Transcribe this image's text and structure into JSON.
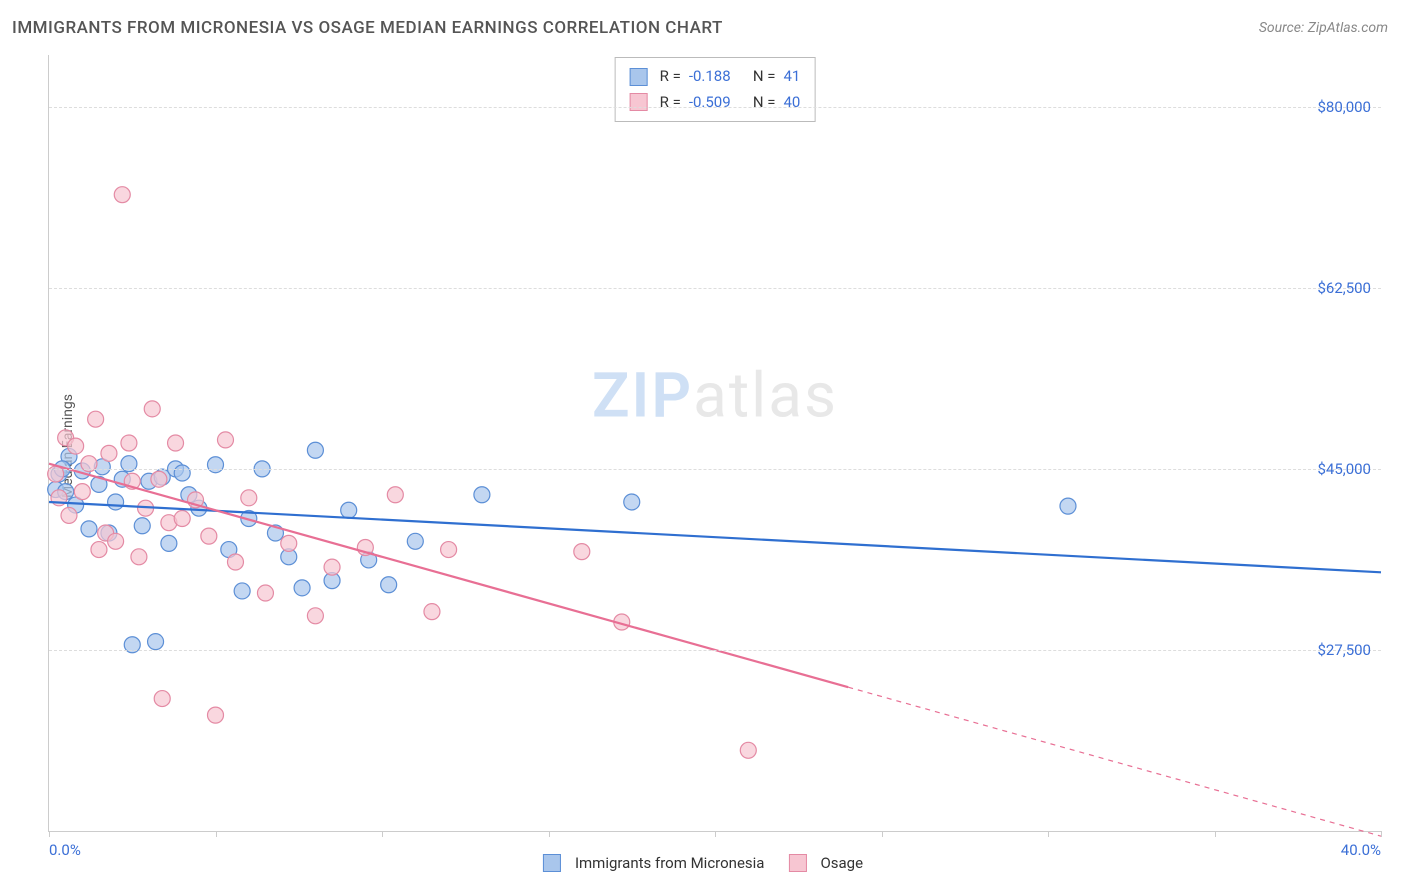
{
  "title": "IMMIGRANTS FROM MICRONESIA VS OSAGE MEDIAN EARNINGS CORRELATION CHART",
  "source": "Source: ZipAtlas.com",
  "y_axis_title": "Median Earnings",
  "watermark": {
    "zip": "ZIP",
    "atlas": "atlas"
  },
  "chart": {
    "type": "scatter",
    "xlim": [
      0,
      40
    ],
    "ylim": [
      10000,
      85000
    ],
    "x_tick_label_left": "0.0%",
    "x_tick_label_right": "40.0%",
    "x_ticks_pct": [
      0,
      5,
      10,
      15,
      20,
      25,
      30,
      35,
      40
    ],
    "y_ticks": [
      27500,
      45000,
      62500,
      80000
    ],
    "y_tick_labels": [
      "$27,500",
      "$45,000",
      "$62,500",
      "$80,000"
    ],
    "background_color": "#ffffff",
    "grid_color": "#dddddd",
    "axis_color": "#cccccc",
    "tick_label_color": "#3b6fd6",
    "tick_label_fontsize": 15,
    "series": [
      {
        "id": "micronesia",
        "label": "Immigrants from Micronesia",
        "fill": "#a9c6ec",
        "stroke": "#5c8fd6",
        "marker_radius": 8,
        "line_color": "#2f6fd0",
        "line_width": 2.2,
        "R": "-0.188",
        "N": "41",
        "trend": {
          "x1": 0,
          "y1": 41800,
          "x2": 40,
          "y2": 35000,
          "solid_until_x": 40
        },
        "points": [
          [
            0.2,
            43000
          ],
          [
            0.3,
            44500
          ],
          [
            0.5,
            42800
          ],
          [
            0.6,
            46200
          ],
          [
            0.8,
            41500
          ],
          [
            1.0,
            44800
          ],
          [
            1.2,
            39200
          ],
          [
            1.5,
            43500
          ],
          [
            1.6,
            45200
          ],
          [
            1.8,
            38800
          ],
          [
            2.0,
            41800
          ],
          [
            2.2,
            44000
          ],
          [
            2.4,
            45500
          ],
          [
            2.5,
            28000
          ],
          [
            2.8,
            39500
          ],
          [
            3.0,
            43800
          ],
          [
            3.2,
            28300
          ],
          [
            3.4,
            44200
          ],
          [
            3.6,
            37800
          ],
          [
            3.8,
            45000
          ],
          [
            4.0,
            44600
          ],
          [
            4.2,
            42500
          ],
          [
            4.5,
            41200
          ],
          [
            5.0,
            45400
          ],
          [
            5.4,
            37200
          ],
          [
            5.8,
            33200
          ],
          [
            6.0,
            40200
          ],
          [
            6.4,
            45000
          ],
          [
            6.8,
            38800
          ],
          [
            7.2,
            36500
          ],
          [
            7.6,
            33500
          ],
          [
            8.0,
            46800
          ],
          [
            8.5,
            34200
          ],
          [
            9.0,
            41000
          ],
          [
            9.6,
            36200
          ],
          [
            10.2,
            33800
          ],
          [
            11.0,
            38000
          ],
          [
            13.0,
            42500
          ],
          [
            17.5,
            41800
          ],
          [
            30.6,
            41400
          ],
          [
            0.4,
            45000
          ]
        ]
      },
      {
        "id": "osage",
        "label": "Osage",
        "fill": "#f7c6d2",
        "stroke": "#e48aa4",
        "marker_radius": 8,
        "line_color": "#e86f94",
        "line_width": 2.2,
        "R": "-0.509",
        "N": "40",
        "trend": {
          "x1": 0,
          "y1": 45500,
          "x2": 40,
          "y2": 9500,
          "solid_until_x": 24
        },
        "points": [
          [
            0.2,
            44500
          ],
          [
            0.3,
            42200
          ],
          [
            0.5,
            48000
          ],
          [
            0.6,
            40500
          ],
          [
            0.8,
            47200
          ],
          [
            1.0,
            42800
          ],
          [
            1.2,
            45500
          ],
          [
            1.4,
            49800
          ],
          [
            1.5,
            37200
          ],
          [
            1.7,
            38800
          ],
          [
            1.8,
            46500
          ],
          [
            2.0,
            38000
          ],
          [
            2.2,
            71500
          ],
          [
            2.4,
            47500
          ],
          [
            2.5,
            43800
          ],
          [
            2.7,
            36500
          ],
          [
            2.9,
            41200
          ],
          [
            3.1,
            50800
          ],
          [
            3.3,
            44000
          ],
          [
            3.4,
            22800
          ],
          [
            3.6,
            39800
          ],
          [
            3.8,
            47500
          ],
          [
            4.0,
            40200
          ],
          [
            4.4,
            42000
          ],
          [
            4.8,
            38500
          ],
          [
            5.0,
            21200
          ],
          [
            5.3,
            47800
          ],
          [
            5.6,
            36000
          ],
          [
            6.0,
            42200
          ],
          [
            6.5,
            33000
          ],
          [
            7.2,
            37800
          ],
          [
            8.0,
            30800
          ],
          [
            8.5,
            35500
          ],
          [
            9.5,
            37400
          ],
          [
            10.4,
            42500
          ],
          [
            11.5,
            31200
          ],
          [
            12.0,
            37200
          ],
          [
            16.0,
            37000
          ],
          [
            17.2,
            30200
          ],
          [
            21.0,
            17800
          ]
        ]
      }
    ],
    "stats_box": {
      "r_label": "R =",
      "n_label": "N ="
    },
    "bottom_legend": true
  }
}
